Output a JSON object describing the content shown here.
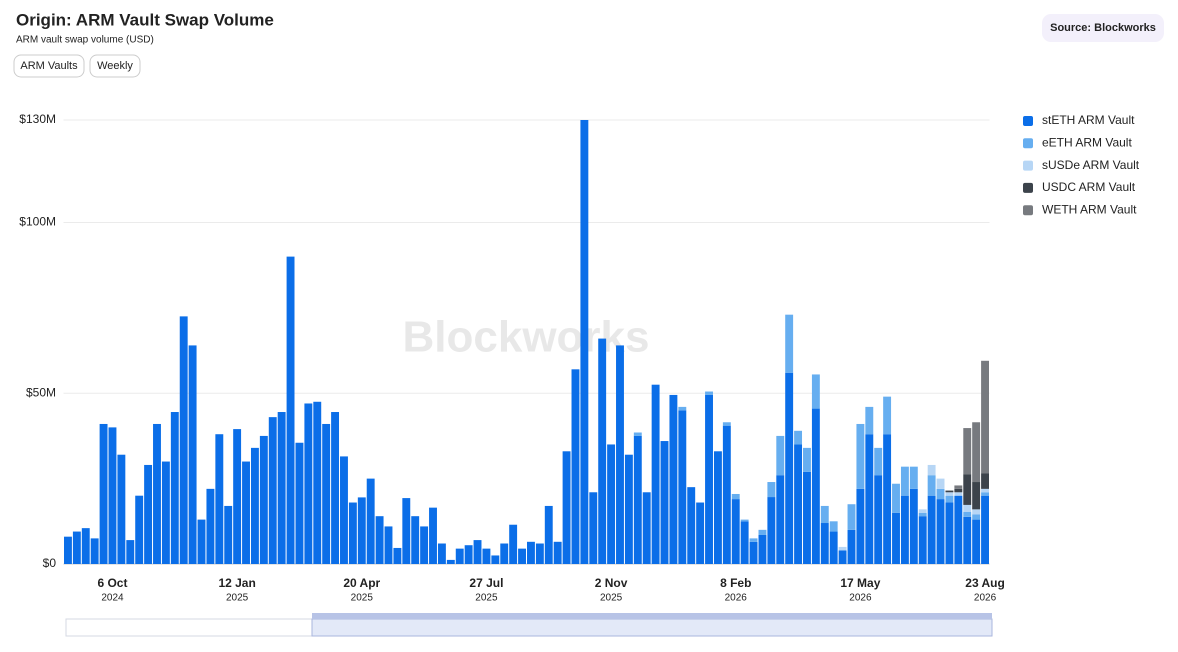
{
  "chart_data": {
    "type": "stacked_bar",
    "title": "Origin: ARM Vault Swap Volume",
    "subtitle": "ARM vault swap volume (USD)",
    "buttons": [
      "ARM Vaults",
      "Weekly"
    ],
    "source": "Source: Blockworks",
    "watermark": "Blockworks",
    "categories": [
      null,
      null,
      null,
      null,
      null,
      "6 Oct",
      null,
      null,
      null,
      null,
      null,
      null,
      null,
      null,
      null,
      null,
      null,
      null,
      null,
      "12 Jan",
      null,
      null,
      null,
      null,
      null,
      null,
      null,
      null,
      null,
      null,
      null,
      null,
      null,
      "20 Apr",
      null,
      null,
      null,
      null,
      null,
      null,
      null,
      null,
      null,
      null,
      null,
      null,
      null,
      "27 Jul",
      null,
      null,
      null,
      null,
      null,
      null,
      null,
      null,
      null,
      null,
      null,
      null,
      null,
      "2 Nov",
      null,
      null,
      null,
      null,
      null,
      null,
      null,
      null,
      null,
      null,
      null,
      null,
      null,
      "8 Feb",
      null,
      null,
      null,
      null,
      null,
      null,
      null,
      null,
      null,
      null,
      null,
      null,
      null,
      "17 May",
      null,
      null,
      null,
      null,
      null,
      null,
      null,
      null,
      null,
      null,
      null,
      null,
      null,
      "23 Aug"
    ],
    "category_years": [
      null,
      null,
      null,
      null,
      null,
      "2024",
      null,
      null,
      null,
      null,
      null,
      null,
      null,
      null,
      null,
      null,
      null,
      null,
      null,
      "2025",
      null,
      null,
      null,
      null,
      null,
      null,
      null,
      null,
      null,
      null,
      null,
      null,
      null,
      "2025",
      null,
      null,
      null,
      null,
      null,
      null,
      null,
      null,
      null,
      null,
      null,
      null,
      null,
      "2025",
      null,
      null,
      null,
      null,
      null,
      null,
      null,
      null,
      null,
      null,
      null,
      null,
      null,
      "2025",
      null,
      null,
      null,
      null,
      null,
      null,
      null,
      null,
      null,
      null,
      null,
      null,
      null,
      "2026",
      null,
      null,
      null,
      null,
      null,
      null,
      null,
      null,
      null,
      null,
      null,
      null,
      null,
      "2026",
      null,
      null,
      null,
      null,
      null,
      null,
      null,
      null,
      null,
      null,
      null,
      null,
      null,
      "2026"
    ],
    "series": [
      {
        "name": "stETH ARM Vault",
        "color": "#0b6ee8",
        "values": [
          8,
          9.5,
          10.5,
          7.5,
          41,
          40,
          32,
          7,
          20,
          29,
          41,
          30,
          44.5,
          72.5,
          64,
          13,
          22,
          38,
          17,
          39.5,
          30,
          34,
          37.5,
          43,
          44.5,
          90,
          35.5,
          47,
          47.5,
          41,
          44.5,
          31.5,
          18,
          19.5,
          25,
          14,
          11,
          4.7,
          19.3,
          14,
          11,
          16.5,
          6,
          1.2,
          4.5,
          5.5,
          7,
          4.5,
          2.5,
          6,
          11.5,
          4.5,
          6.5,
          6,
          17,
          6.5,
          33,
          57,
          130,
          21,
          66,
          35,
          64,
          32,
          37.5,
          21,
          52.5,
          36,
          49.5,
          45,
          22.5,
          18,
          49.5,
          33,
          40.5,
          19,
          12.5,
          6.5,
          8.5,
          19.6,
          26,
          56,
          35,
          27,
          45.5,
          12,
          9.5,
          4,
          10,
          22,
          38,
          26,
          38,
          15,
          20,
          22,
          14,
          20,
          19,
          18,
          20,
          13.8,
          13,
          20
        ]
      },
      {
        "name": "eETH ARM Vault",
        "color": "#66aef0",
        "values": [
          0,
          0,
          0,
          0,
          0,
          0,
          0,
          0,
          0,
          0,
          0,
          0,
          0,
          0,
          0,
          0,
          0,
          0,
          0,
          0,
          0,
          0,
          0,
          0,
          0,
          0,
          0,
          0,
          0,
          0,
          0,
          0,
          0,
          0,
          0,
          0,
          0,
          0,
          0,
          0,
          0,
          0,
          0,
          0,
          0,
          0,
          0,
          0,
          0,
          0,
          0,
          0,
          0,
          0,
          0,
          0,
          0,
          0,
          0,
          0,
          0,
          0,
          0,
          0,
          1,
          0,
          0,
          0,
          0,
          1,
          0,
          0,
          1,
          0,
          1,
          1.5,
          0.5,
          1,
          1.5,
          4.4,
          11.5,
          17,
          4,
          7,
          10,
          5,
          3,
          0,
          7.5,
          19,
          8,
          8,
          11,
          8.5,
          8.5,
          6.5,
          1,
          6,
          3,
          2,
          0,
          1.5,
          1.5,
          1
        ]
      },
      {
        "name": "sUSDe ARM Vault",
        "color": "#b7d6f5",
        "values": [
          0,
          0,
          0,
          0,
          0,
          0,
          0,
          0,
          0,
          0,
          0,
          0,
          0,
          0,
          0,
          0,
          0,
          0,
          0,
          0,
          0,
          0,
          0,
          0,
          0,
          0,
          0,
          0,
          0,
          0,
          0,
          0,
          0,
          0,
          0,
          0,
          0,
          0,
          0,
          0,
          0,
          0,
          0,
          0,
          0,
          0,
          0,
          0,
          0,
          0,
          0,
          0,
          0,
          0,
          0,
          0,
          0,
          0,
          0,
          0,
          0,
          0,
          0,
          0,
          0,
          0,
          0,
          0,
          0,
          0,
          0,
          0,
          0,
          0,
          0,
          0,
          0,
          0,
          0,
          0,
          0,
          0,
          0,
          0,
          0,
          0,
          0,
          1,
          0,
          0,
          0,
          0,
          0,
          0,
          0,
          0,
          1,
          3,
          3,
          1,
          1,
          2,
          1.5,
          1
        ]
      },
      {
        "name": "USDC ARM Vault",
        "color": "#3c434b",
        "values": [
          0,
          0,
          0,
          0,
          0,
          0,
          0,
          0,
          0,
          0,
          0,
          0,
          0,
          0,
          0,
          0,
          0,
          0,
          0,
          0,
          0,
          0,
          0,
          0,
          0,
          0,
          0,
          0,
          0,
          0,
          0,
          0,
          0,
          0,
          0,
          0,
          0,
          0,
          0,
          0,
          0,
          0,
          0,
          0,
          0,
          0,
          0,
          0,
          0,
          0,
          0,
          0,
          0,
          0,
          0,
          0,
          0,
          0,
          0,
          0,
          0,
          0,
          0,
          0,
          0,
          0,
          0,
          0,
          0,
          0,
          0,
          0,
          0,
          0,
          0,
          0,
          0,
          0,
          0,
          0,
          0,
          0,
          0,
          0,
          0,
          0,
          0,
          0,
          0,
          0,
          0,
          0,
          0,
          0,
          0,
          0,
          0,
          0,
          0,
          0.5,
          1,
          9,
          8,
          4.5
        ]
      },
      {
        "name": "WETH ARM Vault",
        "color": "#777a7f",
        "values": [
          0,
          0,
          0,
          0,
          0,
          0,
          0,
          0,
          0,
          0,
          0,
          0,
          0,
          0,
          0,
          0,
          0,
          0,
          0,
          0,
          0,
          0,
          0,
          0,
          0,
          0,
          0,
          0,
          0,
          0,
          0,
          0,
          0,
          0,
          0,
          0,
          0,
          0,
          0,
          0,
          0,
          0,
          0,
          0,
          0,
          0,
          0,
          0,
          0,
          0,
          0,
          0,
          0,
          0,
          0,
          0,
          0,
          0,
          0,
          0,
          0,
          0,
          0,
          0,
          0,
          0,
          0,
          0,
          0,
          0,
          0,
          0,
          0,
          0,
          0,
          0,
          0,
          0,
          0,
          0,
          0,
          0,
          0,
          0,
          0,
          0,
          0,
          0,
          0,
          0,
          0,
          0,
          0,
          0,
          0,
          0,
          0,
          0,
          0,
          0,
          1,
          13.5,
          17.5,
          33
        ]
      }
    ],
    "ylim": [
      0,
      130
    ],
    "yticks": [
      {
        "value": 0,
        "label": "$0"
      },
      {
        "value": 50,
        "label": "$50M"
      },
      {
        "value": 100,
        "label": "$100M"
      },
      {
        "value": 130,
        "label": "$130M"
      }
    ],
    "grid": true,
    "legend": "right"
  }
}
